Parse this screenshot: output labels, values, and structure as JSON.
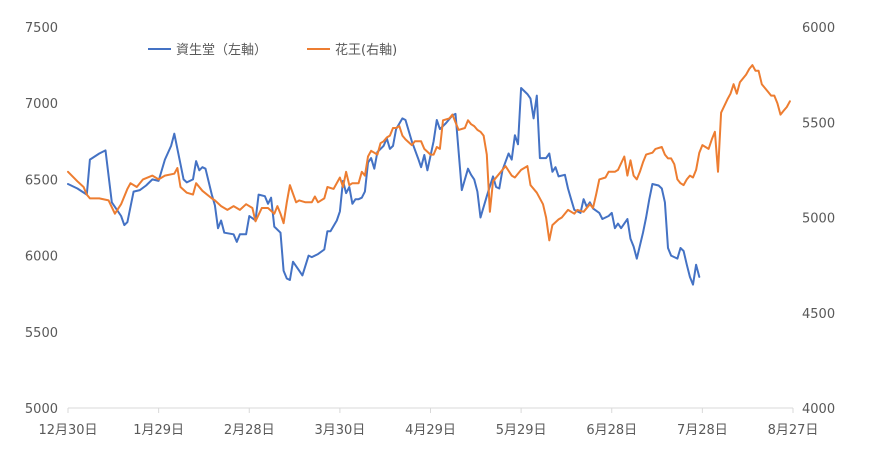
{
  "chart_data": {
    "type": "line",
    "title": "",
    "x_ticks": [
      "12月30日",
      "1月29日",
      "2月28日",
      "3月30日",
      "4月29日",
      "5月29日",
      "6月28日",
      "7月28日",
      "8月27日"
    ],
    "y_left": {
      "min": 5000,
      "max": 7500,
      "step": 500,
      "ticks": [
        "5000",
        "5500",
        "6000",
        "6500",
        "7000",
        "7500"
      ]
    },
    "y_right": {
      "min": 4000,
      "max": 6000,
      "step": 500,
      "ticks": [
        "4000",
        "4500",
        "5000",
        "5500",
        "6000"
      ]
    },
    "legend_position": "top-left",
    "grid": false,
    "series": [
      {
        "name": "資生堂（左軸）",
        "axis": "left",
        "color": "#4472C4",
        "points": [
          [
            0,
            6470
          ],
          [
            3,
            6440
          ],
          [
            6,
            6400
          ],
          [
            7,
            6630
          ],
          [
            10,
            6670
          ],
          [
            12,
            6690
          ],
          [
            14,
            6350
          ],
          [
            17,
            6260
          ],
          [
            18,
            6200
          ],
          [
            19,
            6220
          ],
          [
            21,
            6420
          ],
          [
            23,
            6430
          ],
          [
            25,
            6460
          ],
          [
            27,
            6500
          ],
          [
            29,
            6490
          ],
          [
            31,
            6630
          ],
          [
            33,
            6720
          ],
          [
            34,
            6800
          ],
          [
            36,
            6600
          ],
          [
            37,
            6500
          ],
          [
            38,
            6480
          ],
          [
            40,
            6500
          ],
          [
            41,
            6620
          ],
          [
            42,
            6560
          ],
          [
            43,
            6580
          ],
          [
            44,
            6570
          ],
          [
            46,
            6400
          ],
          [
            47,
            6330
          ],
          [
            48,
            6180
          ],
          [
            49,
            6230
          ],
          [
            50,
            6150
          ],
          [
            53,
            6140
          ],
          [
            54,
            6090
          ],
          [
            55,
            6140
          ],
          [
            57,
            6140
          ],
          [
            58,
            6260
          ],
          [
            60,
            6230
          ],
          [
            61,
            6400
          ],
          [
            63,
            6390
          ],
          [
            64,
            6340
          ],
          [
            65,
            6380
          ],
          [
            66,
            6190
          ],
          [
            68,
            6150
          ],
          [
            69,
            5900
          ],
          [
            70,
            5850
          ],
          [
            71,
            5840
          ],
          [
            72,
            5960
          ],
          [
            74,
            5900
          ],
          [
            75,
            5870
          ],
          [
            77,
            6000
          ],
          [
            78,
            5990
          ],
          [
            80,
            6010
          ],
          [
            82,
            6040
          ],
          [
            83,
            6160
          ],
          [
            84,
            6160
          ],
          [
            86,
            6230
          ],
          [
            87,
            6290
          ],
          [
            88,
            6490
          ],
          [
            89,
            6410
          ],
          [
            90,
            6450
          ],
          [
            91,
            6340
          ],
          [
            92,
            6370
          ],
          [
            93,
            6370
          ],
          [
            94,
            6380
          ],
          [
            95,
            6420
          ],
          [
            96,
            6610
          ],
          [
            97,
            6640
          ],
          [
            98,
            6570
          ],
          [
            99,
            6680
          ],
          [
            101,
            6720
          ],
          [
            102,
            6770
          ],
          [
            103,
            6700
          ],
          [
            104,
            6720
          ],
          [
            105,
            6830
          ],
          [
            107,
            6900
          ],
          [
            108,
            6890
          ],
          [
            110,
            6750
          ],
          [
            112,
            6640
          ],
          [
            113,
            6580
          ],
          [
            114,
            6660
          ],
          [
            115,
            6560
          ],
          [
            117,
            6750
          ],
          [
            118,
            6890
          ],
          [
            119,
            6830
          ],
          [
            121,
            6870
          ],
          [
            123,
            6920
          ],
          [
            124,
            6930
          ],
          [
            126,
            6430
          ],
          [
            128,
            6570
          ],
          [
            129,
            6530
          ],
          [
            130,
            6500
          ],
          [
            131,
            6420
          ],
          [
            132,
            6250
          ],
          [
            134,
            6390
          ],
          [
            136,
            6520
          ],
          [
            137,
            6450
          ],
          [
            138,
            6440
          ],
          [
            139,
            6560
          ],
          [
            141,
            6670
          ],
          [
            142,
            6630
          ],
          [
            143,
            6790
          ],
          [
            144,
            6730
          ],
          [
            145,
            7100
          ],
          [
            147,
            7060
          ],
          [
            148,
            7030
          ],
          [
            149,
            6900
          ],
          [
            150,
            7050
          ],
          [
            151,
            6640
          ],
          [
            153,
            6640
          ],
          [
            154,
            6670
          ],
          [
            155,
            6550
          ],
          [
            156,
            6580
          ],
          [
            157,
            6520
          ],
          [
            159,
            6530
          ],
          [
            160,
            6440
          ],
          [
            161,
            6370
          ],
          [
            162,
            6300
          ],
          [
            164,
            6280
          ],
          [
            165,
            6370
          ],
          [
            166,
            6320
          ],
          [
            167,
            6350
          ],
          [
            168,
            6310
          ],
          [
            170,
            6280
          ],
          [
            171,
            6240
          ],
          [
            173,
            6260
          ],
          [
            174,
            6280
          ],
          [
            175,
            6180
          ],
          [
            176,
            6210
          ],
          [
            177,
            6180
          ],
          [
            178,
            6210
          ],
          [
            179,
            6240
          ],
          [
            180,
            6110
          ],
          [
            181,
            6060
          ],
          [
            182,
            5980
          ],
          [
            184,
            6150
          ],
          [
            185,
            6250
          ],
          [
            186,
            6370
          ],
          [
            187,
            6470
          ],
          [
            189,
            6460
          ],
          [
            190,
            6440
          ],
          [
            191,
            6350
          ],
          [
            192,
            6050
          ],
          [
            193,
            6000
          ],
          [
            194,
            5990
          ],
          [
            195,
            5980
          ],
          [
            196,
            6050
          ],
          [
            197,
            6030
          ],
          [
            198,
            5940
          ],
          [
            199,
            5860
          ],
          [
            200,
            5810
          ],
          [
            201,
            5940
          ],
          [
            202,
            5860
          ]
        ]
      },
      {
        "name": "花王(右軸)",
        "axis": "right",
        "color": "#ED7D31",
        "points": [
          [
            0,
            5240
          ],
          [
            3,
            5190
          ],
          [
            5,
            5160
          ],
          [
            6,
            5120
          ],
          [
            7,
            5100
          ],
          [
            10,
            5100
          ],
          [
            13,
            5090
          ],
          [
            15,
            5020
          ],
          [
            17,
            5070
          ],
          [
            19,
            5150
          ],
          [
            20,
            5180
          ],
          [
            22,
            5160
          ],
          [
            24,
            5200
          ],
          [
            27,
            5220
          ],
          [
            29,
            5200
          ],
          [
            31,
            5220
          ],
          [
            34,
            5230
          ],
          [
            35,
            5260
          ],
          [
            36,
            5160
          ],
          [
            38,
            5130
          ],
          [
            40,
            5120
          ],
          [
            41,
            5180
          ],
          [
            43,
            5140
          ],
          [
            46,
            5100
          ],
          [
            47,
            5090
          ],
          [
            49,
            5060
          ],
          [
            51,
            5040
          ],
          [
            53,
            5060
          ],
          [
            55,
            5040
          ],
          [
            57,
            5070
          ],
          [
            59,
            5050
          ],
          [
            60,
            4980
          ],
          [
            62,
            5050
          ],
          [
            64,
            5050
          ],
          [
            66,
            5020
          ],
          [
            67,
            5060
          ],
          [
            68,
            5020
          ],
          [
            69,
            4970
          ],
          [
            70,
            5080
          ],
          [
            71,
            5170
          ],
          [
            73,
            5080
          ],
          [
            74,
            5090
          ],
          [
            76,
            5080
          ],
          [
            78,
            5080
          ],
          [
            79,
            5110
          ],
          [
            80,
            5080
          ],
          [
            82,
            5100
          ],
          [
            83,
            5160
          ],
          [
            85,
            5150
          ],
          [
            87,
            5210
          ],
          [
            88,
            5160
          ],
          [
            89,
            5240
          ],
          [
            90,
            5170
          ],
          [
            91,
            5180
          ],
          [
            93,
            5180
          ],
          [
            94,
            5240
          ],
          [
            95,
            5220
          ],
          [
            96,
            5320
          ],
          [
            97,
            5350
          ],
          [
            99,
            5330
          ],
          [
            100,
            5390
          ],
          [
            101,
            5400
          ],
          [
            102,
            5420
          ],
          [
            103,
            5430
          ],
          [
            104,
            5470
          ],
          [
            105,
            5470
          ],
          [
            106,
            5480
          ],
          [
            107,
            5430
          ],
          [
            108,
            5410
          ],
          [
            110,
            5380
          ],
          [
            111,
            5400
          ],
          [
            113,
            5400
          ],
          [
            114,
            5360
          ],
          [
            116,
            5330
          ],
          [
            117,
            5330
          ],
          [
            118,
            5370
          ],
          [
            119,
            5360
          ],
          [
            120,
            5510
          ],
          [
            122,
            5520
          ],
          [
            123,
            5540
          ],
          [
            125,
            5460
          ],
          [
            127,
            5470
          ],
          [
            128,
            5510
          ],
          [
            129,
            5490
          ],
          [
            130,
            5480
          ],
          [
            131,
            5460
          ],
          [
            132,
            5450
          ],
          [
            133,
            5430
          ],
          [
            134,
            5330
          ],
          [
            135,
            5030
          ],
          [
            136,
            5190
          ],
          [
            138,
            5230
          ],
          [
            140,
            5270
          ],
          [
            142,
            5220
          ],
          [
            143,
            5210
          ],
          [
            145,
            5250
          ],
          [
            147,
            5270
          ],
          [
            148,
            5170
          ],
          [
            150,
            5130
          ],
          [
            152,
            5070
          ],
          [
            153,
            5000
          ],
          [
            154,
            4880
          ],
          [
            155,
            4960
          ],
          [
            157,
            4990
          ],
          [
            158,
            5000
          ],
          [
            160,
            5040
          ],
          [
            162,
            5020
          ],
          [
            163,
            5040
          ],
          [
            165,
            5030
          ],
          [
            167,
            5070
          ],
          [
            168,
            5050
          ],
          [
            169,
            5120
          ],
          [
            170,
            5200
          ],
          [
            172,
            5210
          ],
          [
            173,
            5240
          ],
          [
            175,
            5240
          ],
          [
            176,
            5250
          ],
          [
            178,
            5320
          ],
          [
            179,
            5220
          ],
          [
            180,
            5300
          ],
          [
            181,
            5220
          ],
          [
            182,
            5200
          ],
          [
            183,
            5240
          ],
          [
            184,
            5290
          ],
          [
            185,
            5330
          ],
          [
            187,
            5340
          ],
          [
            188,
            5360
          ],
          [
            190,
            5370
          ],
          [
            191,
            5330
          ],
          [
            192,
            5310
          ],
          [
            193,
            5310
          ],
          [
            194,
            5280
          ],
          [
            195,
            5200
          ],
          [
            196,
            5180
          ],
          [
            197,
            5170
          ],
          [
            198,
            5200
          ],
          [
            199,
            5220
          ],
          [
            200,
            5210
          ],
          [
            201,
            5250
          ],
          [
            202,
            5340
          ],
          [
            203,
            5380
          ],
          [
            205,
            5360
          ],
          [
            206,
            5410
          ],
          [
            207,
            5450
          ],
          [
            208,
            5240
          ],
          [
            209,
            5550
          ],
          [
            211,
            5620
          ],
          [
            212,
            5650
          ],
          [
            213,
            5700
          ],
          [
            214,
            5650
          ],
          [
            215,
            5710
          ],
          [
            217,
            5750
          ],
          [
            218,
            5780
          ],
          [
            219,
            5800
          ],
          [
            220,
            5770
          ],
          [
            221,
            5770
          ],
          [
            222,
            5700
          ],
          [
            223,
            5680
          ],
          [
            224,
            5660
          ],
          [
            225,
            5640
          ],
          [
            226,
            5640
          ],
          [
            227,
            5600
          ],
          [
            228,
            5540
          ],
          [
            229,
            5560
          ],
          [
            230,
            5580
          ],
          [
            231,
            5610
          ]
        ]
      }
    ]
  }
}
